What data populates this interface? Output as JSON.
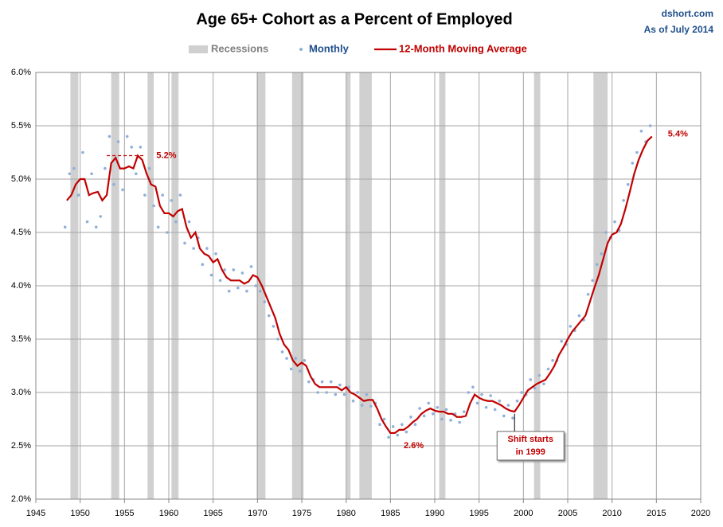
{
  "chart_data": {
    "type": "scatter-line",
    "title": "Age 65+ Cohort as a Percent of Employed",
    "source": "dshort.com",
    "date_note": "As of July 2014",
    "xlim": [
      1945,
      2020
    ],
    "xticks": [
      1945,
      1950,
      1955,
      1960,
      1965,
      1970,
      1975,
      1980,
      1985,
      1990,
      1995,
      2000,
      2005,
      2010,
      2015,
      2020
    ],
    "ylim": [
      2.0,
      6.0
    ],
    "yticks": [
      {
        "value": 2.0,
        "label": "2.0%"
      },
      {
        "value": 2.5,
        "label": "2.5%"
      },
      {
        "value": 3.0,
        "label": "3.0%"
      },
      {
        "value": 3.5,
        "label": "3.5%"
      },
      {
        "value": 4.0,
        "label": "4.0%"
      },
      {
        "value": 4.5,
        "label": "4.5%"
      },
      {
        "value": 5.0,
        "label": "5.0%"
      },
      {
        "value": 5.5,
        "label": "5.5%"
      },
      {
        "value": 6.0,
        "label": "6.0%"
      }
    ],
    "grid": true,
    "legend": "top",
    "recessions": {
      "name": "Recessions",
      "color": "#d0d0d0",
      "ranges": [
        [
          1948.9,
          1949.8
        ],
        [
          1953.5,
          1954.4
        ],
        [
          1957.6,
          1958.3
        ],
        [
          1960.3,
          1961.1
        ],
        [
          1969.9,
          1970.9
        ],
        [
          1973.9,
          1975.2
        ],
        [
          1980.0,
          1980.5
        ],
        [
          1981.5,
          1982.9
        ],
        [
          1990.5,
          1991.2
        ],
        [
          2001.2,
          2001.9
        ],
        [
          2007.9,
          2009.5
        ]
      ]
    },
    "series": [
      {
        "name": "Monthly",
        "type": "scatter",
        "color": "#8fb0d8",
        "x": [
          1948.3,
          1948.8,
          1949.3,
          1949.8,
          1950.3,
          1950.8,
          1951.3,
          1951.8,
          1952.3,
          1952.8,
          1953.3,
          1953.8,
          1954.3,
          1954.8,
          1955.3,
          1955.8,
          1956.3,
          1956.8,
          1957.3,
          1957.8,
          1958.3,
          1958.8,
          1959.3,
          1959.8,
          1960.3,
          1960.8,
          1961.3,
          1961.8,
          1962.3,
          1962.8,
          1963.3,
          1963.8,
          1964.3,
          1964.8,
          1965.3,
          1965.8,
          1966.3,
          1966.8,
          1967.3,
          1967.8,
          1968.3,
          1968.8,
          1969.3,
          1969.8,
          1970.3,
          1970.8,
          1971.3,
          1971.8,
          1972.3,
          1972.8,
          1973.3,
          1973.8,
          1974.3,
          1974.8,
          1975.3,
          1975.8,
          1976.3,
          1976.8,
          1977.3,
          1977.8,
          1978.3,
          1978.8,
          1979.3,
          1979.8,
          1980.3,
          1980.8,
          1981.3,
          1981.8,
          1982.3,
          1982.8,
          1983.3,
          1983.8,
          1984.3,
          1984.8,
          1985.3,
          1985.8,
          1986.3,
          1986.8,
          1987.3,
          1987.8,
          1988.3,
          1988.8,
          1989.3,
          1989.8,
          1990.3,
          1990.8,
          1991.3,
          1991.8,
          1992.3,
          1992.8,
          1993.3,
          1993.8,
          1994.3,
          1994.8,
          1995.3,
          1995.8,
          1996.3,
          1996.8,
          1997.3,
          1997.8,
          1998.3,
          1998.8,
          1999.3,
          1999.8,
          2000.3,
          2000.8,
          2001.3,
          2001.8,
          2002.3,
          2002.8,
          2003.3,
          2003.8,
          2004.3,
          2004.8,
          2005.3,
          2005.8,
          2006.3,
          2006.8,
          2007.3,
          2007.8,
          2008.3,
          2008.8,
          2009.3,
          2009.8,
          2010.3,
          2010.8,
          2011.3,
          2011.8,
          2012.3,
          2012.8,
          2013.3,
          2013.8,
          2014.3
        ],
        "values": [
          4.55,
          5.05,
          5.1,
          4.85,
          5.25,
          4.6,
          5.05,
          4.55,
          4.65,
          5.1,
          5.4,
          4.95,
          5.35,
          4.9,
          5.4,
          5.3,
          5.05,
          5.3,
          4.85,
          5.1,
          4.75,
          4.55,
          4.85,
          4.5,
          4.8,
          4.6,
          4.85,
          4.4,
          4.6,
          4.35,
          4.45,
          4.2,
          4.35,
          4.1,
          4.3,
          4.05,
          4.15,
          3.95,
          4.15,
          3.98,
          4.12,
          3.95,
          4.18,
          4.0,
          3.95,
          3.85,
          3.72,
          3.62,
          3.5,
          3.38,
          3.32,
          3.22,
          3.32,
          3.2,
          3.3,
          3.1,
          3.12,
          3.0,
          3.1,
          3.0,
          3.1,
          2.98,
          3.07,
          2.98,
          3.05,
          2.92,
          3.0,
          2.88,
          2.98,
          2.87,
          2.9,
          2.7,
          2.75,
          2.58,
          2.68,
          2.6,
          2.7,
          2.63,
          2.77,
          2.7,
          2.85,
          2.78,
          2.9,
          2.8,
          2.86,
          2.75,
          2.84,
          2.74,
          2.8,
          2.72,
          2.82,
          3.0,
          3.05,
          2.9,
          2.98,
          2.86,
          2.97,
          2.84,
          2.92,
          2.78,
          2.88,
          2.76,
          2.92,
          3.0,
          2.98,
          3.12,
          3.04,
          3.16,
          3.08,
          3.22,
          3.3,
          3.3,
          3.48,
          3.45,
          3.62,
          3.58,
          3.72,
          3.68,
          3.92,
          4.05,
          4.2,
          4.3,
          4.5,
          4.45,
          4.6,
          4.52,
          4.8,
          4.95,
          5.15,
          5.25,
          5.45,
          5.35,
          5.5
        ]
      },
      {
        "name": "12-Month Moving Average",
        "type": "line",
        "color": "#c00000",
        "x": [
          1948.5,
          1949,
          1949.5,
          1950,
          1950.5,
          1951,
          1951.5,
          1952,
          1952.5,
          1953,
          1953.5,
          1954,
          1954.5,
          1955,
          1955.5,
          1956,
          1956.5,
          1957,
          1957.5,
          1958,
          1958.5,
          1959,
          1959.5,
          1960,
          1960.5,
          1961,
          1961.5,
          1962,
          1962.5,
          1963,
          1963.5,
          1964,
          1964.5,
          1965,
          1965.5,
          1966,
          1966.5,
          1967,
          1967.5,
          1968,
          1968.5,
          1969,
          1969.5,
          1970,
          1970.5,
          1971,
          1971.5,
          1972,
          1972.5,
          1973,
          1973.5,
          1974,
          1974.5,
          1975,
          1975.5,
          1976,
          1976.5,
          1977,
          1977.5,
          1978,
          1978.5,
          1979,
          1979.5,
          1980,
          1980.5,
          1981,
          1981.5,
          1982,
          1982.5,
          1983,
          1983.5,
          1984,
          1984.5,
          1985,
          1985.5,
          1986,
          1986.5,
          1987,
          1987.5,
          1988,
          1988.5,
          1989,
          1989.5,
          1990,
          1990.5,
          1991,
          1991.5,
          1992,
          1992.5,
          1993,
          1993.5,
          1994,
          1994.5,
          1995,
          1995.5,
          1996,
          1996.5,
          1997,
          1997.5,
          1998,
          1998.5,
          1999,
          1999.5,
          2000,
          2000.5,
          2001,
          2001.5,
          2002,
          2002.5,
          2003,
          2003.5,
          2004,
          2004.5,
          2005,
          2005.5,
          2006,
          2006.5,
          2007,
          2007.5,
          2008,
          2008.5,
          2009,
          2009.5,
          2010,
          2010.5,
          2011,
          2011.5,
          2012,
          2012.5,
          2013,
          2013.5,
          2014,
          2014.5
        ],
        "values": [
          4.8,
          4.85,
          4.95,
          5.0,
          5.0,
          4.85,
          4.87,
          4.88,
          4.8,
          4.85,
          5.15,
          5.2,
          5.1,
          5.1,
          5.12,
          5.1,
          5.22,
          5.18,
          5.05,
          4.95,
          4.93,
          4.75,
          4.68,
          4.68,
          4.65,
          4.7,
          4.72,
          4.55,
          4.45,
          4.5,
          4.35,
          4.3,
          4.28,
          4.22,
          4.25,
          4.15,
          4.08,
          4.05,
          4.05,
          4.05,
          4.02,
          4.04,
          4.1,
          4.08,
          4.0,
          3.9,
          3.8,
          3.7,
          3.55,
          3.45,
          3.4,
          3.3,
          3.25,
          3.28,
          3.25,
          3.15,
          3.08,
          3.05,
          3.05,
          3.05,
          3.05,
          3.05,
          3.02,
          3.05,
          3.0,
          2.98,
          2.95,
          2.92,
          2.93,
          2.93,
          2.85,
          2.75,
          2.68,
          2.62,
          2.62,
          2.65,
          2.65,
          2.68,
          2.72,
          2.75,
          2.8,
          2.83,
          2.85,
          2.83,
          2.82,
          2.82,
          2.8,
          2.8,
          2.77,
          2.77,
          2.78,
          2.9,
          2.98,
          2.95,
          2.93,
          2.92,
          2.92,
          2.9,
          2.88,
          2.85,
          2.83,
          2.82,
          2.88,
          2.95,
          3.02,
          3.05,
          3.08,
          3.1,
          3.12,
          3.18,
          3.25,
          3.35,
          3.42,
          3.5,
          3.57,
          3.62,
          3.67,
          3.72,
          3.85,
          3.98,
          4.1,
          4.25,
          4.4,
          4.48,
          4.5,
          4.58,
          4.72,
          4.88,
          5.05,
          5.18,
          5.28,
          5.36,
          5.4
        ]
      }
    ],
    "annotations": [
      {
        "text": "5.2%",
        "x": 1958.6,
        "y": 5.22,
        "line_x": [
          1953,
          1957.3
        ]
      },
      {
        "text": "2.6%",
        "x": 1986.5,
        "y": 2.5
      },
      {
        "text": "5.4%",
        "x": 2016.3,
        "y": 5.42
      },
      {
        "lines": [
          "Shift starts",
          "in 1999"
        ],
        "x": 2000.8,
        "y": 2.5,
        "target_x": 1999,
        "target_y": 2.8
      }
    ]
  }
}
